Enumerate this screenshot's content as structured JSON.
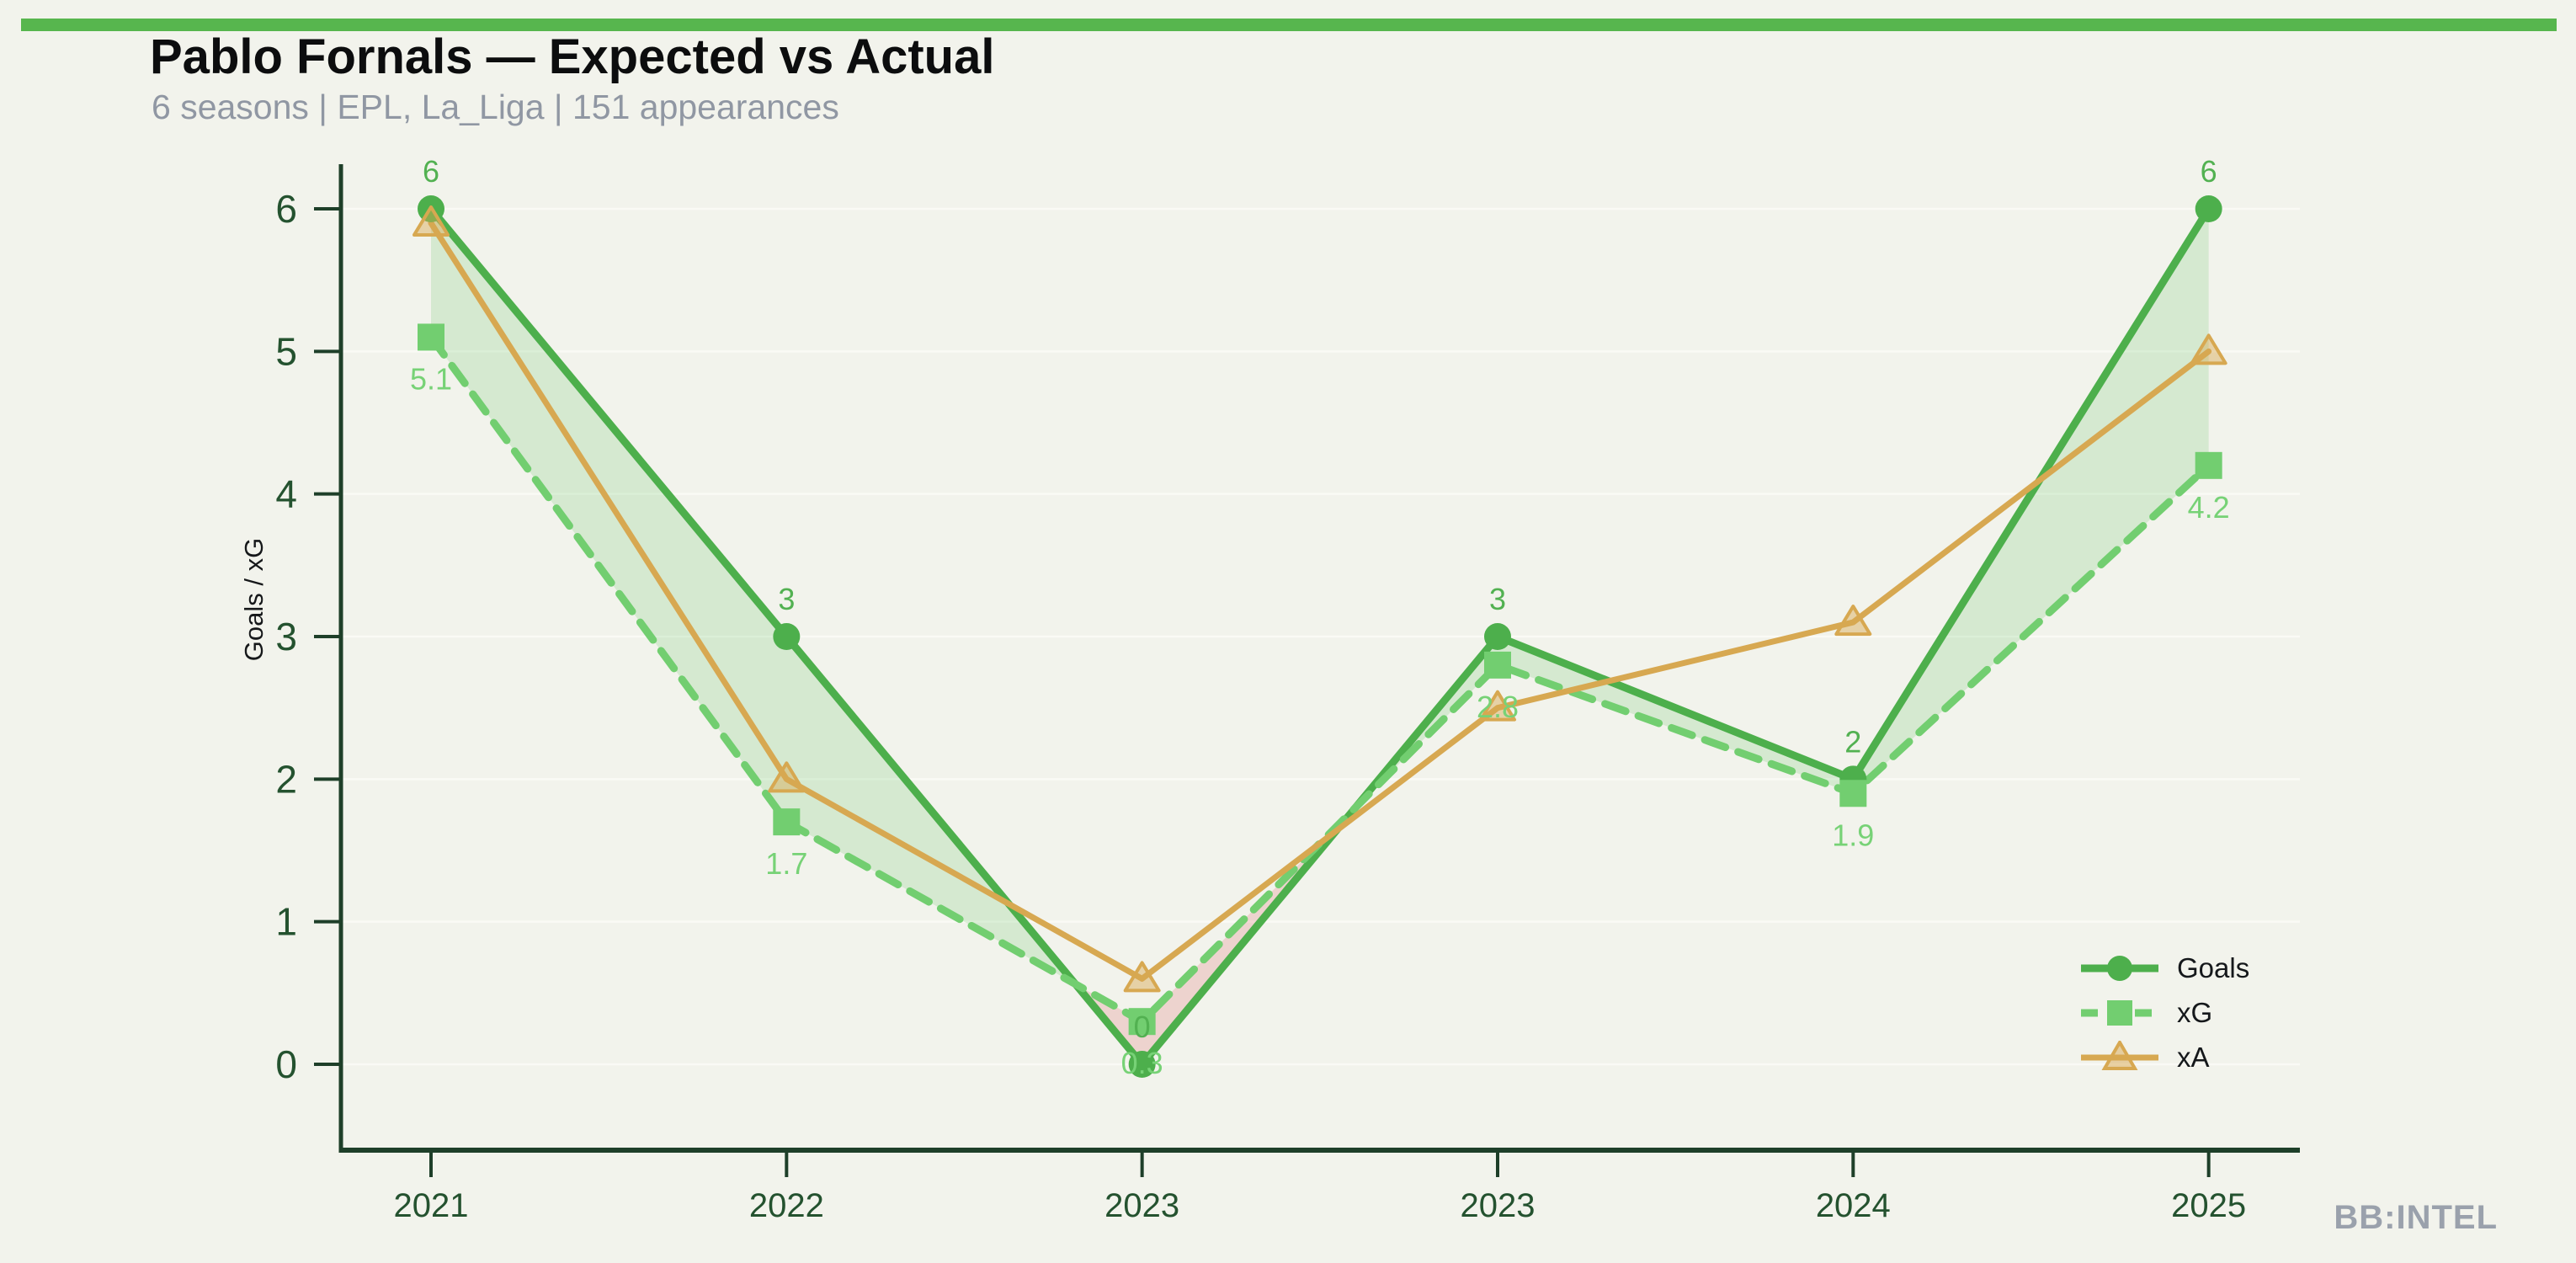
{
  "page": {
    "background_color": "#f2f3ec",
    "accent_bar_color": "#57b64e",
    "watermark": "BB:INTEL"
  },
  "header": {
    "title": "Pablo Fornals — Expected vs Actual",
    "subtitle": "6 seasons | EPL, La_Liga | 151 appearances"
  },
  "chart_data": {
    "type": "line",
    "categories": [
      "2021",
      "2022",
      "2023",
      "2023",
      "2024",
      "2025"
    ],
    "series": [
      {
        "name": "Goals",
        "values": [
          6,
          3,
          0,
          3,
          2,
          6
        ],
        "labels": [
          "6",
          "3",
          "0",
          "3",
          "2",
          "6"
        ],
        "color": "#4daf4c",
        "label_color": "#52b151",
        "marker": "circle",
        "line_style": "solid",
        "label_position": "above"
      },
      {
        "name": "xG",
        "values": [
          5.1,
          1.7,
          0.3,
          2.8,
          1.9,
          4.2
        ],
        "labels": [
          "5.1",
          "1.7",
          "0.3",
          "2.8",
          "1.9",
          "4.2"
        ],
        "color": "#72ce70",
        "label_color": "#77d276",
        "marker": "square",
        "line_style": "dashed",
        "label_position": "below"
      },
      {
        "name": "xA",
        "values": [
          5.9,
          2.0,
          0.6,
          2.5,
          3.1,
          5.0
        ],
        "labels": [],
        "color": "#d7a851",
        "label_color": "#d7a851",
        "marker": "triangle",
        "line_style": "solid",
        "label_position": "none"
      }
    ],
    "xlabel": "",
    "ylabel": "Goals / xG",
    "ylim": [
      0,
      6
    ],
    "yticks": [
      0,
      1,
      2,
      3,
      4,
      5,
      6
    ],
    "grid": "horizontal",
    "grid_color": "#fafaf5",
    "axis_color": "#1e3f29",
    "tick_label_color": "#24522f",
    "legend_position": "lower right",
    "fill_between": {
      "description": "band between Goals and xG",
      "overperform_color": "rgba(110,200,110,0.22)",
      "underperform_color": "rgba(225,120,120,0.26)"
    }
  },
  "legend": {
    "items": [
      {
        "label": "Goals"
      },
      {
        "label": "xG"
      },
      {
        "label": "xA"
      }
    ]
  }
}
